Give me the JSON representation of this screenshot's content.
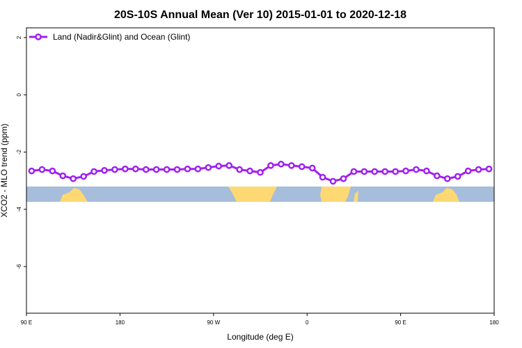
{
  "chart_data": {
    "type": "line",
    "title": "20S-10S Annual Mean (Ver 10)   2015-01-01 to 2020-12-18",
    "x_label": "Longitude (deg E)",
    "y_label": "XCO2 - MLO trend (ppm)",
    "x": [
      95,
      105,
      115,
      125,
      135,
      145,
      155,
      165,
      175,
      185,
      195,
      205,
      215,
      225,
      235,
      245,
      255,
      265,
      275,
      285,
      295,
      305,
      315,
      325,
      335,
      345,
      355,
      365,
      375,
      385,
      395,
      405,
      415,
      425,
      435,
      445,
      455,
      465,
      475,
      485,
      495,
      505,
      515,
      525,
      535
    ],
    "series": [
      {
        "name": "Land (Nadir&Glint) and Ocean (Glint)",
        "color": "#a020f0",
        "values": [
          -2.66,
          -2.61,
          -2.66,
          -2.83,
          -2.93,
          -2.85,
          -2.68,
          -2.64,
          -2.61,
          -2.59,
          -2.59,
          -2.61,
          -2.61,
          -2.61,
          -2.61,
          -2.59,
          -2.59,
          -2.54,
          -2.49,
          -2.47,
          -2.61,
          -2.66,
          -2.71,
          -2.47,
          -2.42,
          -2.47,
          -2.51,
          -2.56,
          -2.88,
          -3.02,
          -2.93,
          -2.68,
          -2.68,
          -2.68,
          -2.68,
          -2.68,
          -2.66,
          -2.61,
          -2.66,
          -2.83,
          -2.93,
          -2.85,
          -2.66,
          -2.61,
          -2.59
        ]
      }
    ],
    "xlim": [
      90,
      540
    ],
    "xticks": [
      {
        "value": 90,
        "label": "90 E"
      },
      180,
      {
        "value": 270,
        "label": "90 W"
      },
      {
        "value": 360,
        "label": "0"
      },
      {
        "value": 450,
        "label": "90 E"
      },
      {
        "value": 540,
        "label": "180"
      }
    ],
    "ylim": [
      -7.63,
      2.34
    ],
    "yticks": [
      2,
      0,
      -2,
      -4,
      -6
    ],
    "legend": "top-left"
  }
}
